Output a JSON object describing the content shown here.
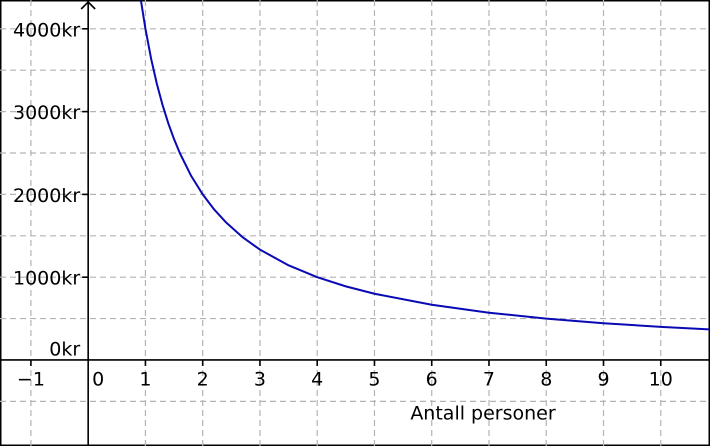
{
  "chart_data": {
    "type": "line",
    "x_label": "Antall personer",
    "x": [
      0.92,
      1,
      1.1,
      1.2,
      1.3,
      1.4,
      1.5,
      1.6,
      1.8,
      2,
      2.2,
      2.4,
      2.7,
      3,
      3.5,
      4,
      4.5,
      5,
      6,
      7,
      8,
      9,
      10,
      10.85
    ],
    "series": [
      {
        "color": "#0a0ab4",
        "values": [
          4348,
          4000,
          3636,
          3333,
          3077,
          2857,
          2667,
          2500,
          2222,
          2000,
          1818,
          1667,
          1481,
          1333,
          1143,
          1000,
          889,
          800,
          667,
          571,
          500,
          444,
          400,
          369
        ]
      }
    ],
    "xlim": [
      -1.54,
      10.86
    ],
    "ylim": [
      -1039,
      4348
    ],
    "xticks": [
      {
        "value": -1,
        "label": "−1"
      },
      0,
      1,
      2,
      3,
      4,
      5,
      6,
      7,
      8,
      9,
      10
    ],
    "yticks": [
      {
        "value": 0,
        "label": "0kr"
      },
      {
        "value": 1000,
        "label": "1000kr"
      },
      {
        "value": 2000,
        "label": "2000kr"
      },
      {
        "value": 3000,
        "label": "3000kr"
      },
      {
        "value": 4000,
        "label": "4000kr"
      }
    ],
    "ygrid": [
      -500,
      500,
      1500,
      2500,
      3500
    ],
    "grid": true
  }
}
